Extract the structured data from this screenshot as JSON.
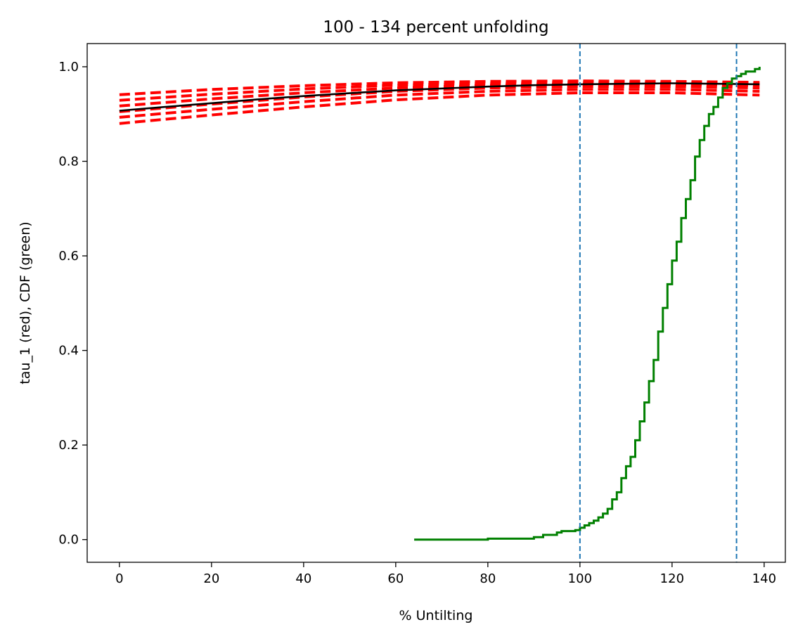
{
  "chart_data": {
    "type": "line",
    "title": "100 - 134 percent unfolding",
    "xlabel": "% Untilting",
    "ylabel": "tau_1 (red), CDF (green)",
    "xlim": [
      -7,
      144.6
    ],
    "ylim": [
      -0.048,
      1.049
    ],
    "xticks": [
      0,
      20,
      40,
      60,
      80,
      100,
      120,
      140
    ],
    "xtick_labels": [
      "0",
      "20",
      "40",
      "60",
      "80",
      "100",
      "120",
      "140"
    ],
    "yticks": [
      0.0,
      0.2,
      0.4,
      0.6,
      0.8,
      1.0
    ],
    "ytick_labels": [
      "0.0",
      "0.2",
      "0.4",
      "0.6",
      "0.8",
      "1.0"
    ],
    "grid": false,
    "colors": {
      "red": "#ff0000",
      "black": "#000000",
      "green": "#008000",
      "vline": "#1f77b4"
    },
    "red_x": [
      0,
      20,
      40,
      60,
      80,
      100,
      120,
      139
    ],
    "red_series": [
      [
        0.88,
        0.898,
        0.915,
        0.93,
        0.94,
        0.945,
        0.945,
        0.94
      ],
      [
        0.893,
        0.91,
        0.926,
        0.94,
        0.948,
        0.952,
        0.952,
        0.948
      ],
      [
        0.905,
        0.921,
        0.936,
        0.948,
        0.955,
        0.958,
        0.958,
        0.955
      ],
      [
        0.917,
        0.932,
        0.945,
        0.955,
        0.961,
        0.963,
        0.963,
        0.96
      ],
      [
        0.929,
        0.942,
        0.953,
        0.961,
        0.965,
        0.967,
        0.966,
        0.964
      ],
      [
        0.941,
        0.952,
        0.96,
        0.966,
        0.969,
        0.97,
        0.969,
        0.967
      ]
    ],
    "mean_x": [
      0,
      10,
      20,
      30,
      40,
      50,
      60,
      70,
      80,
      90,
      100,
      110,
      120,
      130,
      139
    ],
    "mean_y": [
      0.907,
      0.915,
      0.923,
      0.931,
      0.938,
      0.944,
      0.95,
      0.954,
      0.958,
      0.961,
      0.963,
      0.964,
      0.965,
      0.964,
      0.963
    ],
    "cdf_x": [
      64,
      80,
      90,
      92,
      95,
      96,
      99,
      100,
      101,
      102,
      103,
      104,
      105,
      106,
      107,
      108,
      109,
      110,
      111,
      112,
      113,
      114,
      115,
      116,
      117,
      118,
      119,
      120,
      121,
      122,
      123,
      124,
      125,
      126,
      127,
      128,
      129,
      130,
      131,
      132,
      133,
      134,
      135,
      136,
      138,
      139
    ],
    "cdf_y": [
      0.0,
      0.002,
      0.005,
      0.01,
      0.015,
      0.018,
      0.02,
      0.025,
      0.03,
      0.035,
      0.04,
      0.047,
      0.055,
      0.065,
      0.085,
      0.1,
      0.13,
      0.155,
      0.175,
      0.21,
      0.25,
      0.29,
      0.335,
      0.38,
      0.44,
      0.49,
      0.54,
      0.59,
      0.63,
      0.68,
      0.72,
      0.76,
      0.81,
      0.845,
      0.875,
      0.9,
      0.915,
      0.935,
      0.955,
      0.965,
      0.975,
      0.98,
      0.985,
      0.99,
      0.995,
      1.0
    ],
    "vlines": [
      100,
      134
    ]
  }
}
